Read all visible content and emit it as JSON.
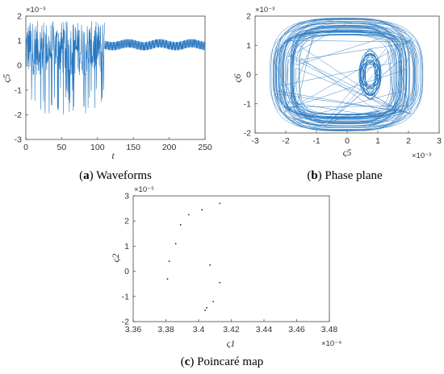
{
  "chart_data": [
    {
      "id": "a",
      "type": "line",
      "caption_letter": "a",
      "caption_text": " Waveforms",
      "xlabel": "t",
      "ylabel": "ς5",
      "exponent": "×10⁻³",
      "xlim": [
        0,
        250
      ],
      "ylim": [
        -3,
        2
      ],
      "xticks": [
        "0",
        "50",
        "100",
        "150",
        "200",
        "250"
      ],
      "yticks": [
        "-3",
        "-2",
        "-1",
        "0",
        "1",
        "2"
      ],
      "color": "#2878c0",
      "segments": [
        {
          "t_start": 0,
          "t_end": 110,
          "description": "chaotic",
          "ymin": -2.1,
          "ymax": 1.8
        },
        {
          "t_start": 110,
          "t_end": 250,
          "description": "periodic band",
          "ymin": 0.6,
          "ymax": 1.05
        }
      ]
    },
    {
      "id": "b",
      "type": "line",
      "caption_letter": "b",
      "caption_text": " Phase plane",
      "xlabel": "ς5",
      "ylabel": "ς6",
      "exponent_x": "×10⁻³",
      "exponent_y": "×10⁻³",
      "xlim": [
        -3,
        3
      ],
      "ylim": [
        -2,
        2
      ],
      "xticks": [
        "-3",
        "-2",
        "-1",
        "0",
        "1",
        "2",
        "3"
      ],
      "yticks": [
        "-2",
        "-1",
        "0",
        "1",
        "2"
      ],
      "color": "#2878c0"
    },
    {
      "id": "c",
      "type": "scatter",
      "caption_letter": "c",
      "caption_text": " Poincaré map",
      "xlabel": "ς1",
      "ylabel": "ς2",
      "exponent_x": "×10⁻⁴",
      "exponent_y": "×10⁻⁵",
      "xlim": [
        3.36,
        3.48
      ],
      "ylim": [
        -2,
        3
      ],
      "xticks": [
        "3.36",
        "3.38",
        "3.4",
        "3.42",
        "3.44",
        "3.46",
        "3.48"
      ],
      "yticks": [
        "-2",
        "-1",
        "0",
        "1",
        "2",
        "3"
      ],
      "points": [
        {
          "x": 3.413,
          "y": 2.7
        },
        {
          "x": 3.402,
          "y": 2.45
        },
        {
          "x": 3.394,
          "y": 2.25
        },
        {
          "x": 3.389,
          "y": 1.85
        },
        {
          "x": 3.386,
          "y": 1.1
        },
        {
          "x": 3.382,
          "y": 0.4
        },
        {
          "x": 3.381,
          "y": -0.3
        },
        {
          "x": 3.407,
          "y": 0.25
        },
        {
          "x": 3.413,
          "y": -0.45
        },
        {
          "x": 3.409,
          "y": -1.2
        },
        {
          "x": 3.405,
          "y": -1.45
        },
        {
          "x": 3.404,
          "y": -1.55
        }
      ]
    }
  ]
}
